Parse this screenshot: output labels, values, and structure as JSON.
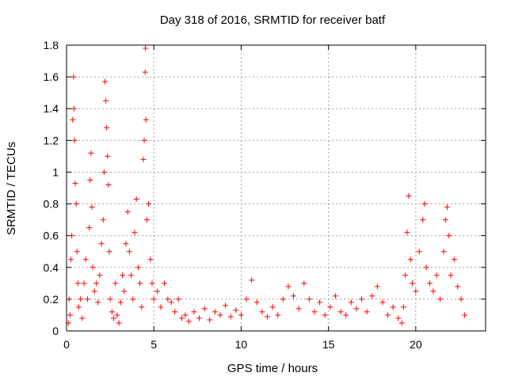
{
  "chart_data": {
    "type": "scatter",
    "title": "Day 318 of 2016, SRMTID for receiver batf",
    "xlabel": "GPS time / hours",
    "ylabel": "SRMTID / TECUs",
    "xlim": [
      0,
      24
    ],
    "ylim": [
      0,
      1.8
    ],
    "xticks": [
      0,
      5,
      10,
      15,
      20
    ],
    "xtick_labels": [
      "0",
      "5",
      "10",
      "15",
      "20"
    ],
    "yticks": [
      0,
      0.2,
      0.4,
      0.6,
      0.8,
      1,
      1.2,
      1.4,
      1.6,
      1.8
    ],
    "ytick_labels": [
      "0",
      "0.2",
      "0.4",
      "0.6",
      "0.8",
      "1",
      "1.2",
      "1.4",
      "1.6",
      "1.8"
    ],
    "grid": true,
    "marker": "+",
    "color": "#ff0000",
    "series": [
      {
        "name": "batf",
        "points": [
          [
            0.1,
            0.05
          ],
          [
            0.15,
            0.2
          ],
          [
            0.2,
            0.1
          ],
          [
            0.25,
            0.45
          ],
          [
            0.3,
            0.6
          ],
          [
            0.35,
            1.33
          ],
          [
            0.4,
            1.6
          ],
          [
            0.42,
            1.4
          ],
          [
            0.45,
            1.2
          ],
          [
            0.5,
            0.93
          ],
          [
            0.55,
            0.8
          ],
          [
            0.6,
            0.5
          ],
          [
            0.65,
            0.3
          ],
          [
            0.7,
            0.15
          ],
          [
            0.8,
            0.2
          ],
          [
            0.9,
            0.08
          ],
          [
            1.0,
            0.3
          ],
          [
            1.1,
            0.45
          ],
          [
            1.2,
            0.2
          ],
          [
            1.3,
            0.65
          ],
          [
            1.35,
            0.95
          ],
          [
            1.4,
            1.12
          ],
          [
            1.45,
            0.78
          ],
          [
            1.5,
            0.4
          ],
          [
            1.6,
            0.25
          ],
          [
            1.7,
            0.3
          ],
          [
            1.8,
            0.18
          ],
          [
            1.9,
            0.35
          ],
          [
            2.0,
            0.55
          ],
          [
            2.1,
            0.7
          ],
          [
            2.15,
            1.0
          ],
          [
            2.2,
            1.57
          ],
          [
            2.25,
            1.45
          ],
          [
            2.3,
            1.28
          ],
          [
            2.35,
            1.1
          ],
          [
            2.4,
            0.92
          ],
          [
            2.45,
            0.5
          ],
          [
            2.5,
            0.2
          ],
          [
            2.6,
            0.12
          ],
          [
            2.7,
            0.08
          ],
          [
            2.8,
            0.3
          ],
          [
            2.9,
            0.1
          ],
          [
            3.0,
            0.05
          ],
          [
            3.1,
            0.18
          ],
          [
            3.2,
            0.35
          ],
          [
            3.3,
            0.25
          ],
          [
            3.4,
            0.55
          ],
          [
            3.5,
            0.75
          ],
          [
            3.6,
            0.5
          ],
          [
            3.7,
            0.35
          ],
          [
            3.8,
            0.2
          ],
          [
            3.9,
            0.62
          ],
          [
            4.0,
            0.83
          ],
          [
            4.1,
            0.4
          ],
          [
            4.2,
            0.3
          ],
          [
            4.3,
            0.15
          ],
          [
            4.4,
            1.08
          ],
          [
            4.45,
            1.2
          ],
          [
            4.5,
            1.63
          ],
          [
            4.52,
            1.78
          ],
          [
            4.55,
            1.33
          ],
          [
            4.6,
            0.7
          ],
          [
            4.7,
            0.8
          ],
          [
            4.8,
            0.45
          ],
          [
            4.9,
            0.3
          ],
          [
            5.0,
            0.2
          ],
          [
            5.2,
            0.25
          ],
          [
            5.4,
            0.15
          ],
          [
            5.6,
            0.3
          ],
          [
            5.8,
            0.2
          ],
          [
            6.0,
            0.18
          ],
          [
            6.2,
            0.12
          ],
          [
            6.4,
            0.2
          ],
          [
            6.6,
            0.08
          ],
          [
            6.8,
            0.1
          ],
          [
            7.0,
            0.06
          ],
          [
            7.3,
            0.12
          ],
          [
            7.6,
            0.08
          ],
          [
            7.9,
            0.14
          ],
          [
            8.2,
            0.07
          ],
          [
            8.5,
            0.12
          ],
          [
            8.8,
            0.1
          ],
          [
            9.1,
            0.16
          ],
          [
            9.4,
            0.09
          ],
          [
            9.7,
            0.13
          ],
          [
            10.0,
            0.1
          ],
          [
            10.3,
            0.2
          ],
          [
            10.6,
            0.32
          ],
          [
            10.9,
            0.18
          ],
          [
            11.2,
            0.12
          ],
          [
            11.5,
            0.09
          ],
          [
            11.8,
            0.15
          ],
          [
            12.1,
            0.1
          ],
          [
            12.4,
            0.2
          ],
          [
            12.7,
            0.28
          ],
          [
            13.0,
            0.22
          ],
          [
            13.3,
            0.14
          ],
          [
            13.6,
            0.3
          ],
          [
            13.9,
            0.2
          ],
          [
            14.2,
            0.12
          ],
          [
            14.5,
            0.18
          ],
          [
            14.8,
            0.1
          ],
          [
            15.1,
            0.15
          ],
          [
            15.4,
            0.22
          ],
          [
            15.7,
            0.12
          ],
          [
            16.0,
            0.1
          ],
          [
            16.3,
            0.18
          ],
          [
            16.6,
            0.14
          ],
          [
            16.9,
            0.2
          ],
          [
            17.2,
            0.12
          ],
          [
            17.5,
            0.22
          ],
          [
            17.8,
            0.28
          ],
          [
            18.1,
            0.18
          ],
          [
            18.4,
            0.1
          ],
          [
            18.7,
            0.15
          ],
          [
            19.0,
            0.08
          ],
          [
            19.2,
            0.05
          ],
          [
            19.3,
            0.15
          ],
          [
            19.4,
            0.35
          ],
          [
            19.5,
            0.62
          ],
          [
            19.6,
            0.85
          ],
          [
            19.7,
            0.45
          ],
          [
            19.8,
            0.3
          ],
          [
            20.0,
            0.25
          ],
          [
            20.2,
            0.5
          ],
          [
            20.4,
            0.7
          ],
          [
            20.5,
            0.8
          ],
          [
            20.6,
            0.4
          ],
          [
            20.8,
            0.3
          ],
          [
            21.0,
            0.25
          ],
          [
            21.2,
            0.35
          ],
          [
            21.4,
            0.2
          ],
          [
            21.6,
            0.5
          ],
          [
            21.7,
            0.7
          ],
          [
            21.8,
            0.78
          ],
          [
            21.9,
            0.6
          ],
          [
            22.0,
            0.35
          ],
          [
            22.2,
            0.45
          ],
          [
            22.4,
            0.28
          ],
          [
            22.6,
            0.2
          ],
          [
            22.8,
            0.1
          ]
        ]
      }
    ]
  }
}
